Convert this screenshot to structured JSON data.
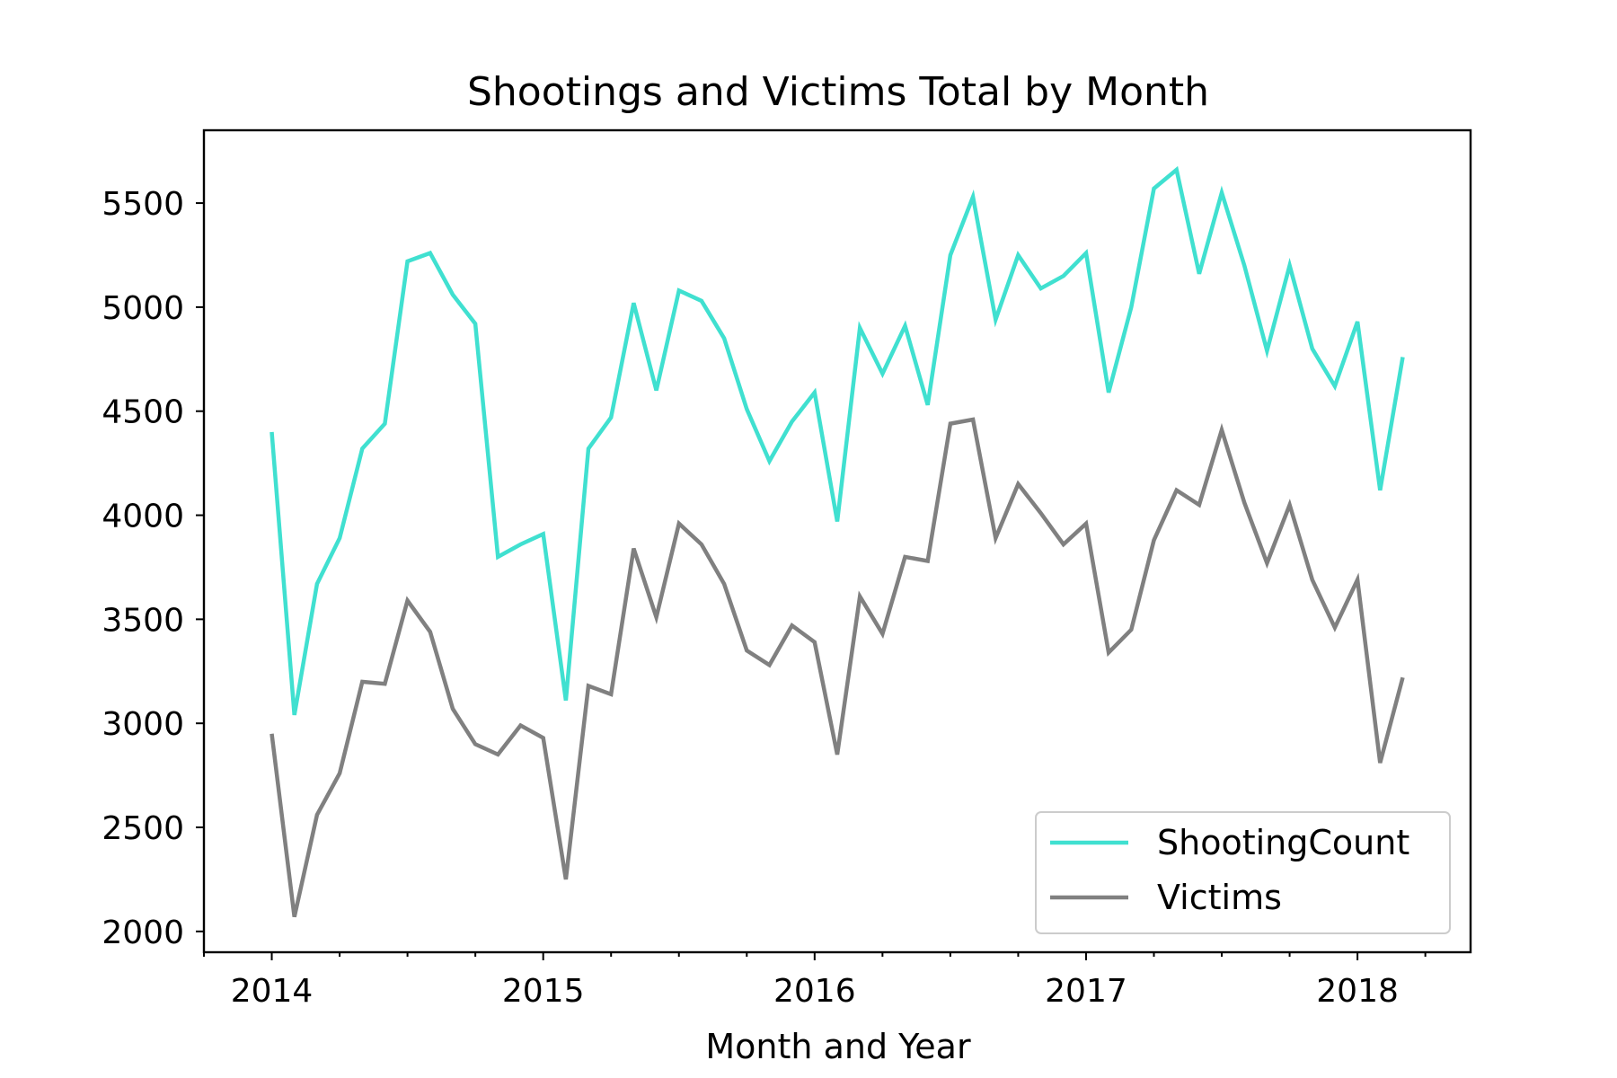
{
  "chart_data": {
    "type": "line",
    "title": "Shootings and Victims Total by Month",
    "xlabel": "Month and Year",
    "ylabel": "",
    "x_tick_labels": [
      "2014",
      "2015",
      "2016",
      "2017",
      "2018"
    ],
    "y_ticks": [
      2000,
      2500,
      3000,
      3500,
      4000,
      4500,
      5000,
      5500
    ],
    "ylim": [
      1900,
      5850
    ],
    "xlim": [
      "2013-10",
      "2018-06"
    ],
    "x": [
      "2014-01",
      "2014-02",
      "2014-03",
      "2014-04",
      "2014-05",
      "2014-06",
      "2014-07",
      "2014-08",
      "2014-09",
      "2014-10",
      "2014-11",
      "2014-12",
      "2015-01",
      "2015-02",
      "2015-03",
      "2015-04",
      "2015-05",
      "2015-06",
      "2015-07",
      "2015-08",
      "2015-09",
      "2015-10",
      "2015-11",
      "2015-12",
      "2016-01",
      "2016-02",
      "2016-03",
      "2016-04",
      "2016-05",
      "2016-06",
      "2016-07",
      "2016-08",
      "2016-09",
      "2016-10",
      "2016-11",
      "2016-12",
      "2017-01",
      "2017-02",
      "2017-03",
      "2017-04",
      "2017-05",
      "2017-06",
      "2017-07",
      "2017-08",
      "2017-09",
      "2017-10",
      "2017-11",
      "2017-12",
      "2018-01",
      "2018-02",
      "2018-03"
    ],
    "series": [
      {
        "name": "ShootingCount",
        "color": "#40e0d0",
        "values": [
          4400,
          3040,
          3670,
          3890,
          4320,
          4440,
          5220,
          5260,
          5060,
          4920,
          3800,
          3860,
          3910,
          3110,
          4320,
          4470,
          5020,
          4600,
          5080,
          5030,
          4850,
          4510,
          4260,
          4450,
          4590,
          3970,
          4900,
          4680,
          4910,
          4530,
          5250,
          5530,
          4940,
          5250,
          5090,
          5150,
          5260,
          4590,
          5000,
          5570,
          5660,
          5160,
          5550,
          5200,
          4790,
          5200,
          4800,
          4620,
          4930,
          4120,
          4760
        ]
      },
      {
        "name": "Victims",
        "color": "#808080",
        "values": [
          2950,
          2070,
          2560,
          2760,
          3200,
          3190,
          3590,
          3440,
          3070,
          2900,
          2850,
          2990,
          2930,
          2250,
          3180,
          3140,
          3840,
          3510,
          3960,
          3860,
          3670,
          3350,
          3280,
          3470,
          3390,
          2850,
          3610,
          3430,
          3800,
          3780,
          4440,
          4460,
          3890,
          4150,
          4010,
          3860,
          3960,
          3340,
          3450,
          3880,
          4120,
          4050,
          4410,
          4060,
          3770,
          4050,
          3690,
          3460,
          3690,
          2810,
          3220
        ]
      }
    ],
    "legend_position": "lower-right",
    "grid": false
  }
}
